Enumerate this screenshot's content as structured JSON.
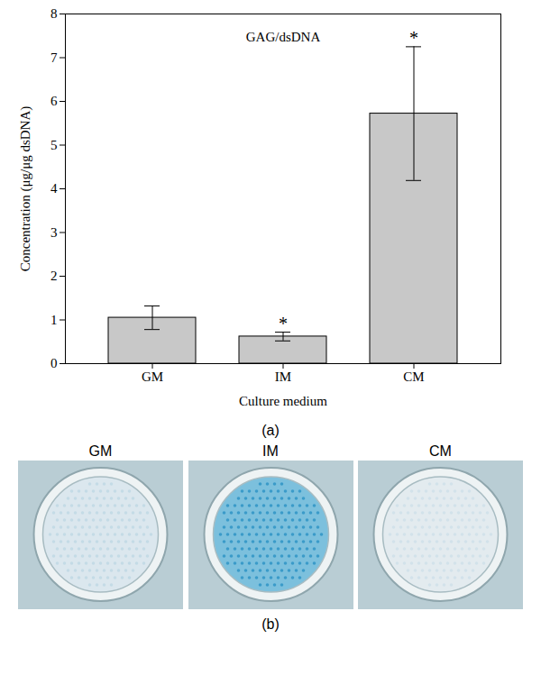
{
  "chart_data": {
    "type": "bar",
    "title": "GAG/dsDNA",
    "categories": [
      "GM",
      "IM",
      "CM"
    ],
    "values": [
      1.05,
      0.62,
      5.72
    ],
    "errors": [
      0.27,
      0.1,
      1.53
    ],
    "annotations": [
      null,
      "*",
      "*"
    ],
    "color": "#c8c8c8",
    "xlabel": "Culture medium",
    "ylabel": "Concentration (μg/μg dsDNA)",
    "ylim": [
      0,
      8
    ],
    "yticks": [
      0,
      1,
      2,
      3,
      4,
      5,
      6,
      7,
      8
    ]
  },
  "panels": {
    "labels": [
      "(a)",
      "(b)"
    ],
    "photos": {
      "labels": [
        "GM",
        "IM",
        "CM"
      ]
    }
  }
}
